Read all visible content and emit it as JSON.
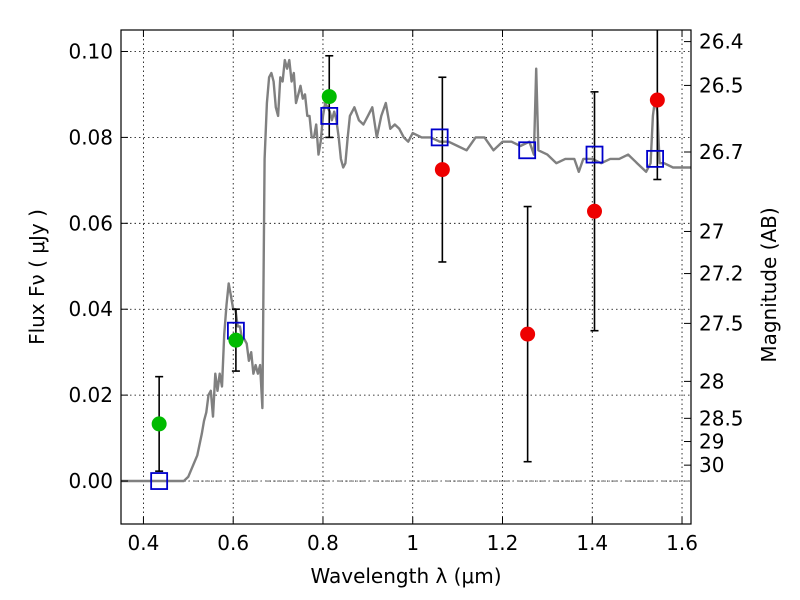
{
  "chart_data": {
    "type": "scatter",
    "xlabel": "Wavelength  λ (μm)",
    "ylabel": "Flux  Fν  ( μJy )",
    "ylabel_right": "Magnitude (AB)",
    "xlim": [
      0.35,
      1.62
    ],
    "ylim": [
      -0.01,
      0.105
    ],
    "x_ticks": [
      0.4,
      0.6,
      0.8,
      1.0,
      1.2,
      1.4,
      1.6
    ],
    "x_tick_labels": [
      "0.4",
      "0.6",
      "0.8",
      "1",
      "1.2",
      "1.4",
      "1.6"
    ],
    "y_ticks": [
      0.0,
      0.02,
      0.04,
      0.06,
      0.08,
      0.1
    ],
    "y_tick_labels": [
      "0.00",
      "0.02",
      "0.04",
      "0.06",
      "0.08",
      "0.10"
    ],
    "right_ticks": [
      {
        "label": "26.4",
        "flux": 0.1023
      },
      {
        "label": "26.5",
        "flux": 0.0921
      },
      {
        "label": "26.7",
        "flux": 0.0766
      },
      {
        "label": "27",
        "flux": 0.0581
      },
      {
        "label": "27.2",
        "flux": 0.0483
      },
      {
        "label": "27.5",
        "flux": 0.0367
      },
      {
        "label": "28",
        "flux": 0.0232
      },
      {
        "label": "28.5",
        "flux": 0.0146
      },
      {
        "label": "29",
        "flux": 0.0092
      },
      {
        "label": "30",
        "flux": 0.0037
      }
    ],
    "grid": true,
    "series": [
      {
        "kind": "model-spectrum",
        "color": "#808080",
        "x": [
          0.35,
          0.49,
          0.5,
          0.52,
          0.53,
          0.535,
          0.54,
          0.545,
          0.55,
          0.555,
          0.56,
          0.565,
          0.57,
          0.575,
          0.58,
          0.585,
          0.59,
          0.595,
          0.6,
          0.605,
          0.61,
          0.615,
          0.62,
          0.625,
          0.63,
          0.635,
          0.64,
          0.645,
          0.65,
          0.655,
          0.66,
          0.665,
          0.67,
          0.675,
          0.68,
          0.685,
          0.69,
          0.695,
          0.7,
          0.705,
          0.71,
          0.715,
          0.72,
          0.725,
          0.73,
          0.735,
          0.74,
          0.745,
          0.75,
          0.755,
          0.76,
          0.765,
          0.77,
          0.775,
          0.78,
          0.785,
          0.79,
          0.795,
          0.8,
          0.805,
          0.81,
          0.815,
          0.82,
          0.825,
          0.83,
          0.835,
          0.84,
          0.845,
          0.85,
          0.855,
          0.86,
          0.87,
          0.88,
          0.89,
          0.9,
          0.91,
          0.92,
          0.93,
          0.94,
          0.95,
          0.96,
          0.97,
          0.98,
          0.99,
          1.0,
          1.02,
          1.04,
          1.06,
          1.08,
          1.1,
          1.12,
          1.14,
          1.16,
          1.18,
          1.2,
          1.22,
          1.24,
          1.26,
          1.27,
          1.275,
          1.28,
          1.3,
          1.32,
          1.34,
          1.36,
          1.37,
          1.38,
          1.4,
          1.42,
          1.44,
          1.46,
          1.48,
          1.5,
          1.52,
          1.53,
          1.535,
          1.54,
          1.545,
          1.55,
          1.56,
          1.58,
          1.6,
          1.62
        ],
        "y": [
          0.0,
          0.0,
          0.001,
          0.006,
          0.011,
          0.014,
          0.016,
          0.02,
          0.021,
          0.015,
          0.025,
          0.021,
          0.025,
          0.022,
          0.034,
          0.041,
          0.046,
          0.043,
          0.04,
          0.04,
          0.036,
          0.036,
          0.033,
          0.033,
          0.032,
          0.028,
          0.03,
          0.025,
          0.027,
          0.025,
          0.027,
          0.017,
          0.075,
          0.088,
          0.094,
          0.095,
          0.093,
          0.087,
          0.085,
          0.094,
          0.093,
          0.098,
          0.096,
          0.098,
          0.093,
          0.095,
          0.088,
          0.09,
          0.092,
          0.089,
          0.09,
          0.085,
          0.085,
          0.08,
          0.08,
          0.083,
          0.076,
          0.079,
          0.085,
          0.088,
          0.087,
          0.086,
          0.084,
          0.086,
          0.084,
          0.08,
          0.075,
          0.073,
          0.074,
          0.08,
          0.085,
          0.087,
          0.084,
          0.083,
          0.085,
          0.087,
          0.08,
          0.085,
          0.088,
          0.082,
          0.083,
          0.082,
          0.08,
          0.079,
          0.081,
          0.08,
          0.08,
          0.079,
          0.079,
          0.078,
          0.077,
          0.08,
          0.08,
          0.077,
          0.079,
          0.079,
          0.078,
          0.079,
          0.076,
          0.096,
          0.077,
          0.076,
          0.074,
          0.075,
          0.075,
          0.072,
          0.075,
          0.075,
          0.074,
          0.075,
          0.075,
          0.076,
          0.074,
          0.072,
          0.074,
          0.085,
          0.089,
          0.086,
          0.074,
          0.074,
          0.073,
          0.073,
          0.073
        ]
      },
      {
        "kind": "synthetic-photometry",
        "color": "#0000cc",
        "x": [
          0.435,
          0.606,
          0.814,
          1.06,
          1.255,
          1.405,
          1.54
        ],
        "y": [
          0.0,
          0.035,
          0.085,
          0.08,
          0.077,
          0.076,
          0.075
        ]
      },
      {
        "kind": "observed-detection",
        "color": "#00bb00",
        "x": [
          0.435,
          0.606,
          0.814
        ],
        "y": [
          0.0133,
          0.0328,
          0.0895
        ],
        "err": [
          0.011,
          0.0072,
          0.0095
        ]
      },
      {
        "kind": "observed-nir",
        "color": "#ee0000",
        "x": [
          1.066,
          1.256,
          1.405,
          1.545
        ],
        "y": [
          0.0725,
          0.0342,
          0.0628,
          0.0887
        ],
        "err": [
          0.0215,
          0.0297,
          0.0278,
          0.0185
        ]
      }
    ]
  }
}
